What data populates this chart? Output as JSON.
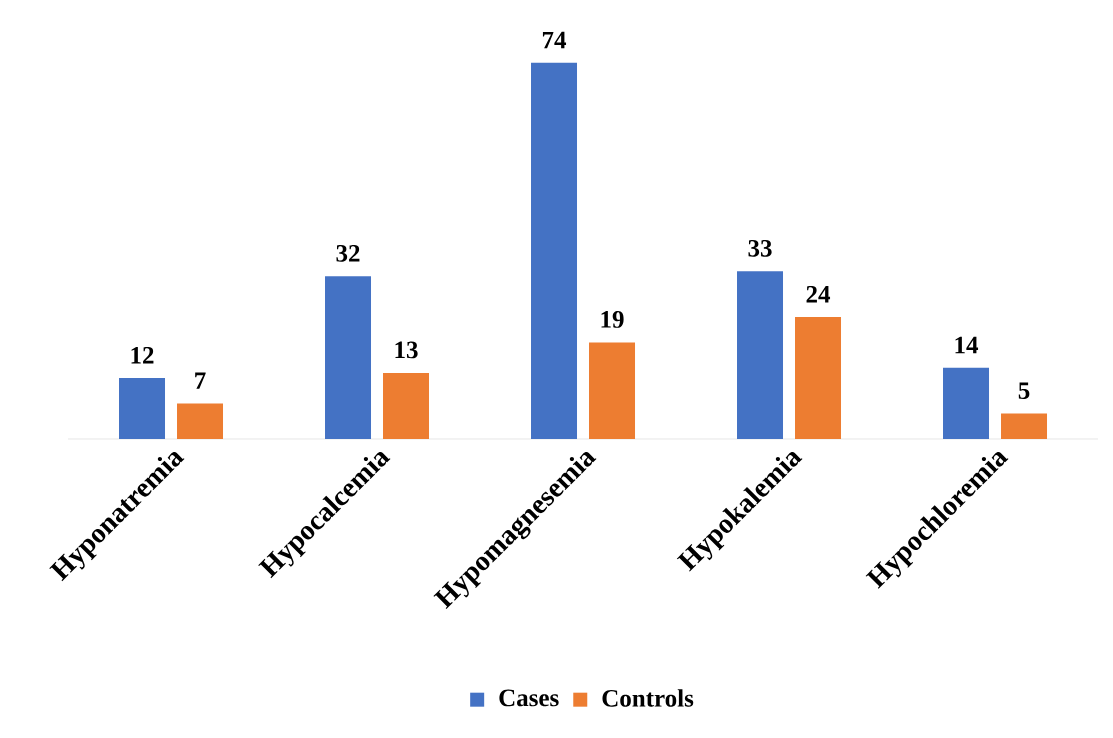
{
  "chart_data": {
    "type": "bar",
    "categories": [
      "Hyponatremia",
      "Hypocalcemia",
      "Hypomagnesemia",
      "Hypokalemia",
      "Hypochloremia"
    ],
    "series": [
      {
        "name": "Cases",
        "color": "#4472c4",
        "values": [
          12,
          32,
          74,
          33,
          14
        ]
      },
      {
        "name": "Controls",
        "color": "#ed7d31",
        "values": [
          7,
          13,
          19,
          24,
          5
        ]
      }
    ],
    "data_labels": true,
    "legend": "bottom"
  }
}
